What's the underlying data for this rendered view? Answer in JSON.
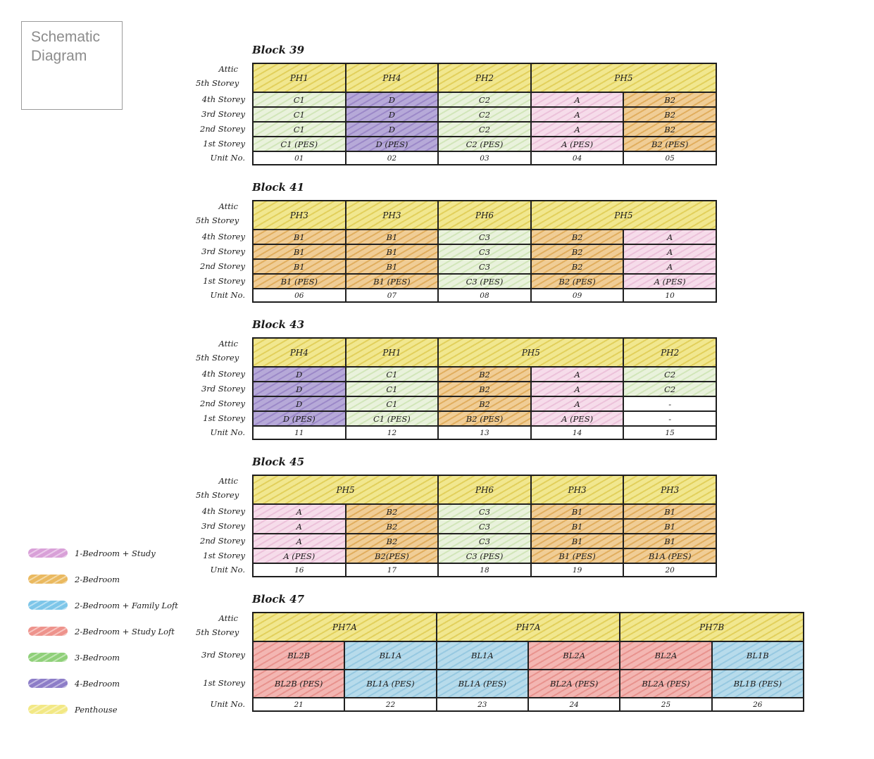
{
  "title_box": {
    "line1": "Schematic",
    "line2": "Diagram"
  },
  "row_labels": {
    "attic": "Attic",
    "fifth": "5th Storey",
    "unit_no": "Unit No."
  },
  "palette": {
    "1br_study": {
      "bg": "#f6dcea",
      "hatch": "#ecc2da"
    },
    "2br": {
      "bg": "#f0cd96",
      "hatch": "#e1ae5f"
    },
    "2br_family_loft": {
      "bg": "#b7dbeb",
      "hatch": "#97c9e1"
    },
    "2br_study_loft": {
      "bg": "#f3b6b2",
      "hatch": "#e8938e"
    },
    "3br": {
      "bg": "#e9f2dc",
      "hatch": "#d2e6ba"
    },
    "4br": {
      "bg": "#b6a9d8",
      "hatch": "#9c89c8"
    },
    "penthouse": {
      "bg": "#f1e78f",
      "hatch": "#e2d05c"
    },
    "none": {
      "bg": "#ffffff",
      "hatch": "rgba(0,0,0,0)"
    }
  },
  "legend": {
    "items": [
      {
        "label": "1-Bedroom + Study",
        "color": "#d9a0d8",
        "type": "1br_study"
      },
      {
        "label": "2-Bedroom",
        "color": "#eab95f",
        "type": "2br"
      },
      {
        "label": "2-Bedroom + Family Loft",
        "color": "#7dc6e9",
        "type": "2br_family_loft"
      },
      {
        "label": "2-Bedroom + Study Loft",
        "color": "#ee938c",
        "type": "2br_study_loft"
      },
      {
        "label": "3-Bedroom",
        "color": "#8fd079",
        "type": "3br"
      },
      {
        "label": "4-Bedroom",
        "color": "#8d7dc8",
        "type": "4br"
      },
      {
        "label": "Penthouse",
        "color": "#f2e884",
        "type": "penthouse"
      }
    ]
  },
  "blocks": [
    {
      "name": "Block 39",
      "columns": 5,
      "penthouse_cells": [
        {
          "text": "PH1",
          "span": 1
        },
        {
          "text": "PH4",
          "span": 1
        },
        {
          "text": "PH2",
          "span": 1
        },
        {
          "text": "PH5",
          "span": 2
        }
      ],
      "storey_rows": [
        {
          "label": "4th Storey",
          "cells": [
            {
              "text": "C1",
              "type": "3br"
            },
            {
              "text": "D",
              "type": "4br"
            },
            {
              "text": "C2",
              "type": "3br"
            },
            {
              "text": "A",
              "type": "1br_study"
            },
            {
              "text": "B2",
              "type": "2br"
            }
          ]
        },
        {
          "label": "3rd Storey",
          "cells": [
            {
              "text": "C1",
              "type": "3br"
            },
            {
              "text": "D",
              "type": "4br"
            },
            {
              "text": "C2",
              "type": "3br"
            },
            {
              "text": "A",
              "type": "1br_study"
            },
            {
              "text": "B2",
              "type": "2br"
            }
          ]
        },
        {
          "label": "2nd Storey",
          "cells": [
            {
              "text": "C1",
              "type": "3br"
            },
            {
              "text": "D",
              "type": "4br"
            },
            {
              "text": "C2",
              "type": "3br"
            },
            {
              "text": "A",
              "type": "1br_study"
            },
            {
              "text": "B2",
              "type": "2br"
            }
          ]
        },
        {
          "label": "1st Storey",
          "cells": [
            {
              "text": "C1 (PES)",
              "type": "3br"
            },
            {
              "text": "D (PES)",
              "type": "4br"
            },
            {
              "text": "C2 (PES)",
              "type": "3br"
            },
            {
              "text": "A (PES)",
              "type": "1br_study"
            },
            {
              "text": "B2 (PES)",
              "type": "2br"
            }
          ]
        }
      ],
      "units": [
        "01",
        "02",
        "03",
        "04",
        "05"
      ]
    },
    {
      "name": "Block 41",
      "columns": 5,
      "penthouse_cells": [
        {
          "text": "PH3",
          "span": 1
        },
        {
          "text": "PH3",
          "span": 1
        },
        {
          "text": "PH6",
          "span": 1
        },
        {
          "text": "PH5",
          "span": 2
        }
      ],
      "storey_rows": [
        {
          "label": "4th Storey",
          "cells": [
            {
              "text": "B1",
              "type": "2br"
            },
            {
              "text": "B1",
              "type": "2br"
            },
            {
              "text": "C3",
              "type": "3br"
            },
            {
              "text": "B2",
              "type": "2br"
            },
            {
              "text": "A",
              "type": "1br_study"
            }
          ]
        },
        {
          "label": "3rd Storey",
          "cells": [
            {
              "text": "B1",
              "type": "2br"
            },
            {
              "text": "B1",
              "type": "2br"
            },
            {
              "text": "C3",
              "type": "3br"
            },
            {
              "text": "B2",
              "type": "2br"
            },
            {
              "text": "A",
              "type": "1br_study"
            }
          ]
        },
        {
          "label": "2nd Storey",
          "cells": [
            {
              "text": "B1",
              "type": "2br"
            },
            {
              "text": "B1",
              "type": "2br"
            },
            {
              "text": "C3",
              "type": "3br"
            },
            {
              "text": "B2",
              "type": "2br"
            },
            {
              "text": "A",
              "type": "1br_study"
            }
          ]
        },
        {
          "label": "1st Storey",
          "cells": [
            {
              "text": "B1 (PES)",
              "type": "2br"
            },
            {
              "text": "B1 (PES)",
              "type": "2br"
            },
            {
              "text": "C3 (PES)",
              "type": "3br"
            },
            {
              "text": "B2 (PES)",
              "type": "2br"
            },
            {
              "text": "A (PES)",
              "type": "1br_study"
            }
          ]
        }
      ],
      "units": [
        "06",
        "07",
        "08",
        "09",
        "10"
      ]
    },
    {
      "name": "Block 43",
      "columns": 5,
      "penthouse_cells": [
        {
          "text": "PH4",
          "span": 1
        },
        {
          "text": "PH1",
          "span": 1
        },
        {
          "text": "PH5",
          "span": 2
        },
        {
          "text": "PH2",
          "span": 1
        }
      ],
      "storey_rows": [
        {
          "label": "4th Storey",
          "cells": [
            {
              "text": "D",
              "type": "4br"
            },
            {
              "text": "C1",
              "type": "3br"
            },
            {
              "text": "B2",
              "type": "2br"
            },
            {
              "text": "A",
              "type": "1br_study"
            },
            {
              "text": "C2",
              "type": "3br"
            }
          ]
        },
        {
          "label": "3rd Storey",
          "cells": [
            {
              "text": "D",
              "type": "4br"
            },
            {
              "text": "C1",
              "type": "3br"
            },
            {
              "text": "B2",
              "type": "2br"
            },
            {
              "text": "A",
              "type": "1br_study"
            },
            {
              "text": "C2",
              "type": "3br"
            }
          ]
        },
        {
          "label": "2nd Storey",
          "cells": [
            {
              "text": "D",
              "type": "4br"
            },
            {
              "text": "C1",
              "type": "3br"
            },
            {
              "text": "B2",
              "type": "2br"
            },
            {
              "text": "A",
              "type": "1br_study"
            },
            {
              "text": "-",
              "type": "none"
            }
          ]
        },
        {
          "label": "1st Storey",
          "cells": [
            {
              "text": "D (PES)",
              "type": "4br"
            },
            {
              "text": "C1 (PES)",
              "type": "3br"
            },
            {
              "text": "B2 (PES)",
              "type": "2br"
            },
            {
              "text": "A (PES)",
              "type": "1br_study"
            },
            {
              "text": "-",
              "type": "none"
            }
          ]
        }
      ],
      "units": [
        "11",
        "12",
        "13",
        "14",
        "15"
      ]
    },
    {
      "name": "Block 45",
      "columns": 5,
      "penthouse_cells": [
        {
          "text": "PH5",
          "span": 2
        },
        {
          "text": "PH6",
          "span": 1
        },
        {
          "text": "PH3",
          "span": 1
        },
        {
          "text": "PH3",
          "span": 1
        }
      ],
      "storey_rows": [
        {
          "label": "4th Storey",
          "cells": [
            {
              "text": "A",
              "type": "1br_study"
            },
            {
              "text": "B2",
              "type": "2br"
            },
            {
              "text": "C3",
              "type": "3br"
            },
            {
              "text": "B1",
              "type": "2br"
            },
            {
              "text": "B1",
              "type": "2br"
            }
          ]
        },
        {
          "label": "3rd Storey",
          "cells": [
            {
              "text": "A",
              "type": "1br_study"
            },
            {
              "text": "B2",
              "type": "2br"
            },
            {
              "text": "C3",
              "type": "3br"
            },
            {
              "text": "B1",
              "type": "2br"
            },
            {
              "text": "B1",
              "type": "2br"
            }
          ]
        },
        {
          "label": "2nd Storey",
          "cells": [
            {
              "text": "A",
              "type": "1br_study"
            },
            {
              "text": "B2",
              "type": "2br"
            },
            {
              "text": "C3",
              "type": "3br"
            },
            {
              "text": "B1",
              "type": "2br"
            },
            {
              "text": "B1",
              "type": "2br"
            }
          ]
        },
        {
          "label": "1st Storey",
          "cells": [
            {
              "text": "A (PES)",
              "type": "1br_study"
            },
            {
              "text": "B2(PES)",
              "type": "2br"
            },
            {
              "text": "C3 (PES)",
              "type": "3br"
            },
            {
              "text": "B1 (PES)",
              "type": "2br"
            },
            {
              "text": "B1A (PES)",
              "type": "2br"
            }
          ]
        }
      ],
      "units": [
        "16",
        "17",
        "18",
        "19",
        "20"
      ]
    },
    {
      "name": "Block 47",
      "columns": 6,
      "penthouse_cells": [
        {
          "text": "PH7A",
          "span": 2
        },
        {
          "text": "PH7A",
          "span": 2
        },
        {
          "text": "PH7B",
          "span": 2
        }
      ],
      "storey_rows": [
        {
          "label": "3rd Storey",
          "cells": [
            {
              "text": "BL2B",
              "type": "2br_study_loft"
            },
            {
              "text": "BL1A",
              "type": "2br_family_loft"
            },
            {
              "text": "BL1A",
              "type": "2br_family_loft"
            },
            {
              "text": "BL2A",
              "type": "2br_study_loft"
            },
            {
              "text": "BL2A",
              "type": "2br_study_loft"
            },
            {
              "text": "BL1B",
              "type": "2br_family_loft"
            }
          ]
        },
        {
          "label": "1st Storey",
          "cells": [
            {
              "text": "BL2B (PES)",
              "type": "2br_study_loft"
            },
            {
              "text": "BL1A (PES)",
              "type": "2br_family_loft"
            },
            {
              "text": "BL1A (PES)",
              "type": "2br_family_loft"
            },
            {
              "text": "BL2A (PES)",
              "type": "2br_study_loft"
            },
            {
              "text": "BL2A (PES)",
              "type": "2br_study_loft"
            },
            {
              "text": "BL1B (PES)",
              "type": "2br_family_loft"
            }
          ]
        }
      ],
      "units": [
        "21",
        "22",
        "23",
        "24",
        "25",
        "26"
      ]
    }
  ]
}
